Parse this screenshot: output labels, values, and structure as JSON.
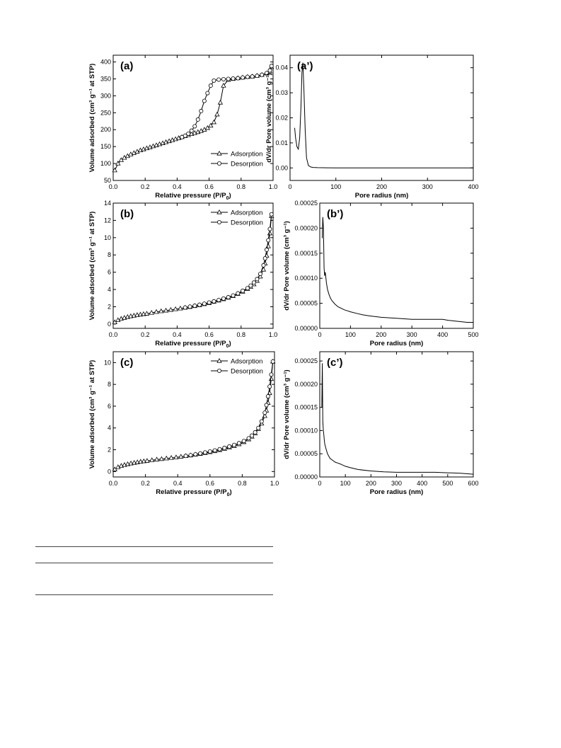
{
  "chart_data": [
    {
      "id": "a",
      "type": "line",
      "title": "(a)",
      "xlabel": "Relative pressure (P/P",
      "xlabel_sub": "0",
      "xlabel_end": ")",
      "ylabel": "Volume adsorbed (cm³ g⁻¹ at STP)",
      "xlim": [
        0.0,
        1.0
      ],
      "ylim": [
        50,
        420
      ],
      "xticks": [
        0.0,
        0.2,
        0.4,
        0.6,
        0.8,
        1.0
      ],
      "xtick_labels": [
        "0.0",
        "0.2",
        "0.4",
        "0.6",
        "0.8",
        "1.0"
      ],
      "yticks": [
        50,
        100,
        150,
        200,
        250,
        300,
        350,
        400
      ],
      "ytick_labels": [
        "50",
        "100",
        "150",
        "200",
        "250",
        "300",
        "350",
        "400"
      ],
      "legend_position": "bottom-right",
      "series": [
        {
          "name": "Adsorption",
          "marker": "triangle",
          "x": [
            0.01,
            0.03,
            0.05,
            0.07,
            0.09,
            0.11,
            0.13,
            0.15,
            0.17,
            0.19,
            0.21,
            0.23,
            0.25,
            0.27,
            0.29,
            0.31,
            0.33,
            0.35,
            0.37,
            0.39,
            0.41,
            0.43,
            0.45,
            0.47,
            0.49,
            0.51,
            0.53,
            0.55,
            0.57,
            0.59,
            0.61,
            0.63,
            0.65,
            0.67,
            0.69,
            0.72,
            0.75,
            0.78,
            0.81,
            0.84,
            0.87,
            0.9,
            0.93,
            0.96,
            0.98,
            0.99
          ],
          "y": [
            80,
            100,
            110,
            117,
            122,
            127,
            131,
            135,
            139,
            142,
            145,
            148,
            151,
            154,
            157,
            160,
            163,
            166,
            169,
            172,
            175,
            178,
            181,
            184,
            187,
            190,
            193,
            196,
            200,
            205,
            212,
            222,
            245,
            280,
            330,
            347,
            350,
            352,
            354,
            356,
            357,
            359,
            362,
            366,
            372,
            385
          ]
        },
        {
          "name": "Desorption",
          "marker": "circle",
          "x": [
            0.99,
            0.98,
            0.96,
            0.93,
            0.9,
            0.87,
            0.84,
            0.81,
            0.78,
            0.75,
            0.72,
            0.69,
            0.66,
            0.63,
            0.61,
            0.59,
            0.57,
            0.55,
            0.53,
            0.51,
            0.49,
            0.47,
            0.45,
            0.43
          ],
          "y": [
            388,
            375,
            367,
            362,
            359,
            357,
            356,
            354,
            352,
            351,
            350,
            349,
            348,
            345,
            330,
            308,
            285,
            255,
            230,
            210,
            197,
            188,
            182,
            178
          ]
        }
      ]
    },
    {
      "id": "a'",
      "type": "line",
      "title": "(a’)",
      "xlabel": "Pore radius (nm)",
      "ylabel": "dV/dr Pore volume (cm³ g⁻¹)",
      "xlim": [
        0,
        400
      ],
      "ylim": [
        -0.005,
        0.045
      ],
      "xticks": [
        0,
        100,
        200,
        300,
        400
      ],
      "xtick_labels": [
        "0",
        "100",
        "200",
        "300",
        "400"
      ],
      "yticks": [
        0.0,
        0.01,
        0.02,
        0.03,
        0.04
      ],
      "ytick_labels": [
        "0.00",
        "0.01",
        "0.02",
        "0.03",
        "0.04"
      ],
      "series": [
        {
          "name": "",
          "x": [
            10,
            12,
            15,
            18,
            21,
            24,
            26,
            28,
            30,
            33,
            36,
            40,
            45,
            50,
            60,
            80,
            100,
            150,
            200,
            300,
            400
          ],
          "y": [
            0.016,
            0.012,
            0.0085,
            0.0075,
            0.012,
            0.025,
            0.038,
            0.042,
            0.033,
            0.015,
            0.004,
            0.001,
            0.0004,
            0.0002,
            0.0001,
            5e-05,
            3e-05,
            2e-05,
            1e-05,
            0.0,
            0.0
          ]
        }
      ]
    },
    {
      "id": "b",
      "type": "line",
      "title": "(b)",
      "xlabel": "Relative pressure (P/P",
      "xlabel_sub": "0",
      "xlabel_end": ")",
      "ylabel": "Volume adsorbed (cm³ g⁻¹ at STP)",
      "xlim": [
        0.0,
        1.0
      ],
      "ylim": [
        -0.5,
        14
      ],
      "xticks": [
        0.0,
        0.2,
        0.4,
        0.6,
        0.8,
        1.0
      ],
      "xtick_labels": [
        "0.0",
        "0.2",
        "0.4",
        "0.6",
        "0.8",
        "1.0"
      ],
      "yticks": [
        0,
        2,
        4,
        6,
        8,
        10,
        12,
        14
      ],
      "ytick_labels": [
        "0",
        "2",
        "4",
        "6",
        "8",
        "10",
        "12",
        "14"
      ],
      "legend_position": "top-right",
      "series": [
        {
          "name": "Adsorption",
          "marker": "triangle",
          "x": [
            0.01,
            0.03,
            0.05,
            0.07,
            0.09,
            0.11,
            0.13,
            0.15,
            0.17,
            0.19,
            0.21,
            0.24,
            0.27,
            0.3,
            0.33,
            0.36,
            0.39,
            0.42,
            0.45,
            0.48,
            0.51,
            0.54,
            0.57,
            0.6,
            0.63,
            0.66,
            0.69,
            0.72,
            0.75,
            0.78,
            0.81,
            0.84,
            0.86,
            0.88,
            0.9,
            0.92,
            0.94,
            0.95,
            0.96,
            0.97,
            0.98,
            0.99
          ],
          "y": [
            0.2,
            0.45,
            0.6,
            0.72,
            0.82,
            0.9,
            0.97,
            1.04,
            1.1,
            1.15,
            1.2,
            1.3,
            1.4,
            1.48,
            1.56,
            1.64,
            1.72,
            1.8,
            1.89,
            1.98,
            2.08,
            2.18,
            2.3,
            2.43,
            2.57,
            2.72,
            2.88,
            3.05,
            3.25,
            3.48,
            3.75,
            4.05,
            4.3,
            4.6,
            5.0,
            5.5,
            6.3,
            7.0,
            7.9,
            9.0,
            10.5,
            12.5
          ]
        },
        {
          "name": "Desorption",
          "marker": "circle",
          "x": [
            0.99,
            0.98,
            0.97,
            0.96,
            0.95,
            0.94,
            0.92,
            0.9,
            0.88,
            0.86,
            0.84,
            0.81,
            0.78,
            0.75,
            0.72,
            0.69,
            0.66,
            0.63,
            0.6,
            0.57,
            0.54,
            0.51,
            0.48,
            0.45
          ],
          "y": [
            12.7,
            11.0,
            9.7,
            8.6,
            7.6,
            6.8,
            5.8,
            5.2,
            4.8,
            4.45,
            4.15,
            3.85,
            3.55,
            3.3,
            3.1,
            2.95,
            2.78,
            2.63,
            2.49,
            2.35,
            2.23,
            2.12,
            2.01,
            1.91
          ]
        }
      ]
    },
    {
      "id": "b'",
      "type": "line",
      "title": "(b’)",
      "xlabel": "Pore radius (nm)",
      "ylabel": "dV/dr Pore volume (cm³ g⁻¹)",
      "xlim": [
        0,
        500
      ],
      "ylim": [
        0,
        0.00025
      ],
      "xticks": [
        0,
        100,
        200,
        300,
        400,
        500
      ],
      "xtick_labels": [
        "0",
        "100",
        "200",
        "300",
        "400",
        "500"
      ],
      "yticks": [
        0.0,
        5e-05,
        0.0001,
        0.00015,
        0.0002,
        0.00025
      ],
      "ytick_labels": [
        "0.00000",
        "0.00005",
        "0.00010",
        "0.00015",
        "0.00020",
        "0.00025"
      ],
      "series": [
        {
          "name": "",
          "x": [
            8,
            10,
            12,
            14,
            16,
            18,
            20,
            22,
            25,
            30,
            35,
            40,
            50,
            60,
            70,
            80,
            90,
            100,
            120,
            140,
            160,
            200,
            250,
            300,
            350,
            400,
            420,
            450,
            480,
            500
          ],
          "y": [
            0.00018,
            0.000222,
            0.0002,
            0.00012,
            0.000105,
            0.000112,
            0.0001,
            9e-05,
            7.8e-05,
            6.8e-05,
            6e-05,
            5.5e-05,
            4.8e-05,
            4.3e-05,
            4e-05,
            3.7e-05,
            3.5e-05,
            3.3e-05,
            3e-05,
            2.7e-05,
            2.5e-05,
            2.2e-05,
            2e-05,
            1.8e-05,
            1.8e-05,
            1.8e-05,
            1.6e-05,
            1.4e-05,
            1.2e-05,
            1.2e-05
          ]
        }
      ]
    },
    {
      "id": "c",
      "type": "line",
      "title": "(c)",
      "xlabel": "Relative pressure (P/P",
      "xlabel_sub": "0",
      "xlabel_end": ")",
      "ylabel": "Volume adsorbed (cm³ g⁻¹ at STP)",
      "xlim": [
        0.0,
        1.0
      ],
      "ylim": [
        -0.5,
        11
      ],
      "xticks": [
        0.0,
        0.2,
        0.4,
        0.6,
        0.8,
        1.0
      ],
      "xtick_labels": [
        "0.0",
        "0.2",
        "0.4",
        "0.6",
        "0.8",
        "1.0"
      ],
      "yticks": [
        0,
        2,
        4,
        6,
        8,
        10
      ],
      "ytick_labels": [
        "0",
        "2",
        "4",
        "6",
        "8",
        "10"
      ],
      "legend_position": "top-right",
      "series": [
        {
          "name": "Adsorption",
          "marker": "triangle",
          "x": [
            0.01,
            0.03,
            0.05,
            0.07,
            0.09,
            0.11,
            0.13,
            0.15,
            0.17,
            0.19,
            0.21,
            0.24,
            0.27,
            0.3,
            0.33,
            0.36,
            0.39,
            0.42,
            0.45,
            0.48,
            0.51,
            0.54,
            0.57,
            0.6,
            0.63,
            0.66,
            0.69,
            0.72,
            0.75,
            0.78,
            0.81,
            0.84,
            0.86,
            0.88,
            0.9,
            0.92,
            0.94,
            0.95,
            0.96,
            0.97,
            0.98,
            0.99
          ],
          "y": [
            0.2,
            0.4,
            0.52,
            0.6,
            0.68,
            0.74,
            0.8,
            0.85,
            0.9,
            0.94,
            0.98,
            1.04,
            1.1,
            1.15,
            1.2,
            1.25,
            1.3,
            1.36,
            1.42,
            1.48,
            1.55,
            1.62,
            1.7,
            1.78,
            1.87,
            1.97,
            2.08,
            2.2,
            2.33,
            2.5,
            2.7,
            2.95,
            3.2,
            3.5,
            3.9,
            4.4,
            5.1,
            5.6,
            6.3,
            7.2,
            8.5,
            10.1
          ]
        },
        {
          "name": "Desorption",
          "marker": "circle",
          "x": [
            0.99,
            0.98,
            0.97,
            0.96,
            0.95,
            0.94,
            0.92,
            0.9,
            0.88,
            0.86,
            0.84,
            0.81,
            0.78,
            0.75,
            0.72,
            0.69,
            0.66,
            0.63,
            0.6,
            0.57,
            0.54,
            0.51,
            0.48,
            0.45
          ],
          "y": [
            10.1,
            8.9,
            7.8,
            6.9,
            6.1,
            5.4,
            4.6,
            4.0,
            3.6,
            3.3,
            3.05,
            2.8,
            2.6,
            2.44,
            2.3,
            2.17,
            2.05,
            1.94,
            1.84,
            1.75,
            1.66,
            1.58,
            1.5,
            1.43
          ]
        }
      ]
    },
    {
      "id": "c'",
      "type": "line",
      "title": "(c’)",
      "xlabel": "Pore radius (nm)",
      "ylabel": "dV/dr Pore volume (cm³ g⁻¹)",
      "xlim": [
        0,
        600
      ],
      "ylim": [
        0,
        0.00027
      ],
      "xticks": [
        0,
        100,
        200,
        300,
        400,
        500,
        600
      ],
      "xtick_labels": [
        "0",
        "100",
        "200",
        "300",
        "400",
        "500",
        "600"
      ],
      "yticks": [
        0.0,
        5e-05,
        0.0001,
        0.00015,
        0.0002,
        0.00025
      ],
      "ytick_labels": [
        "0.00000",
        "0.00005",
        "0.00010",
        "0.00015",
        "0.00020",
        "0.00025"
      ],
      "series": [
        {
          "name": "",
          "x": [
            8,
            10,
            12,
            14,
            16,
            18,
            20,
            25,
            30,
            40,
            50,
            60,
            70,
            80,
            100,
            120,
            150,
            200,
            250,
            300,
            350,
            400,
            450,
            500,
            550,
            600
          ],
          "y": [
            0.00015,
            0.000245,
            0.00012,
            0.0001,
            9e-05,
            7.8e-05,
            7e-05,
            6e-05,
            5e-05,
            4e-05,
            3.6e-05,
            3.2e-05,
            3e-05,
            2.8e-05,
            2.3e-05,
            2e-05,
            1.6e-05,
            1.3e-05,
            1.1e-05,
            1e-05,
            1e-05,
            1e-05,
            1e-05,
            9e-06,
            8e-06,
            6e-06
          ]
        }
      ]
    }
  ]
}
